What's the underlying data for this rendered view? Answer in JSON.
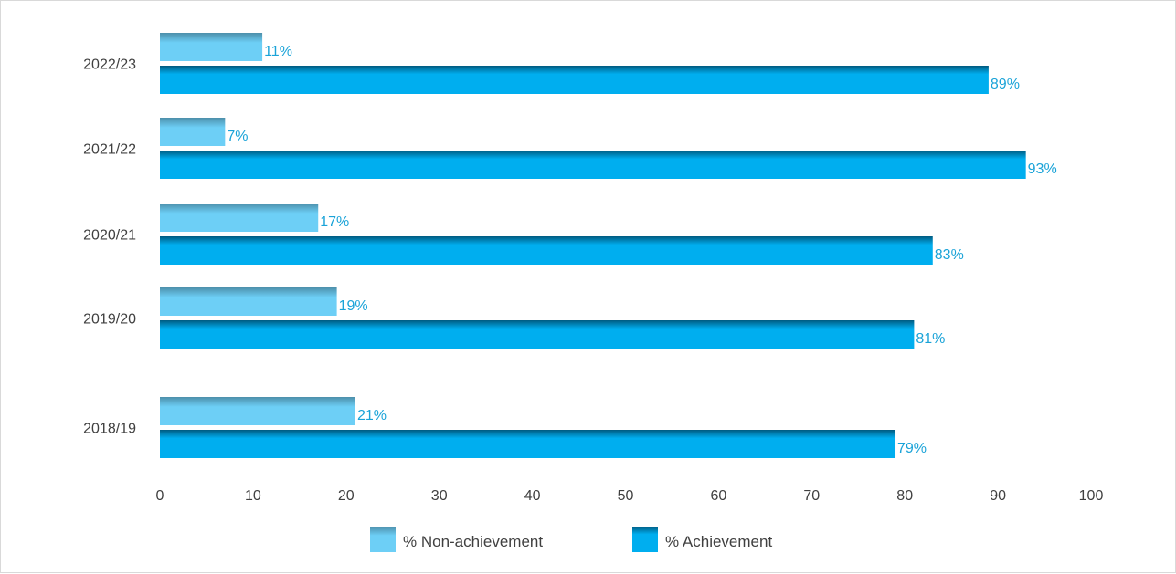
{
  "chart_data": {
    "type": "bar",
    "orientation": "horizontal",
    "categories": [
      "2022/23",
      "2021/22",
      "2020/21",
      "2019/20",
      "2018/19"
    ],
    "series": [
      {
        "name": "% Non-achievement",
        "values": [
          11,
          7,
          17,
          19,
          21
        ],
        "labels": [
          "11%",
          "7%",
          "17%",
          "19%",
          "21%"
        ],
        "color": "#6dcff6"
      },
      {
        "name": "% Achievement",
        "values": [
          89,
          93,
          83,
          81,
          79
        ],
        "labels": [
          "89%",
          "93%",
          "83%",
          "81%",
          "79%"
        ],
        "color": "#00aeef"
      }
    ],
    "xlim": [
      0,
      100
    ],
    "xticks": [
      "0",
      "10",
      "20",
      "30",
      "40",
      "50",
      "60",
      "70",
      "80",
      "90",
      "100"
    ],
    "grid": false,
    "legend": "bottom",
    "label_color": "#1aa3d8"
  }
}
